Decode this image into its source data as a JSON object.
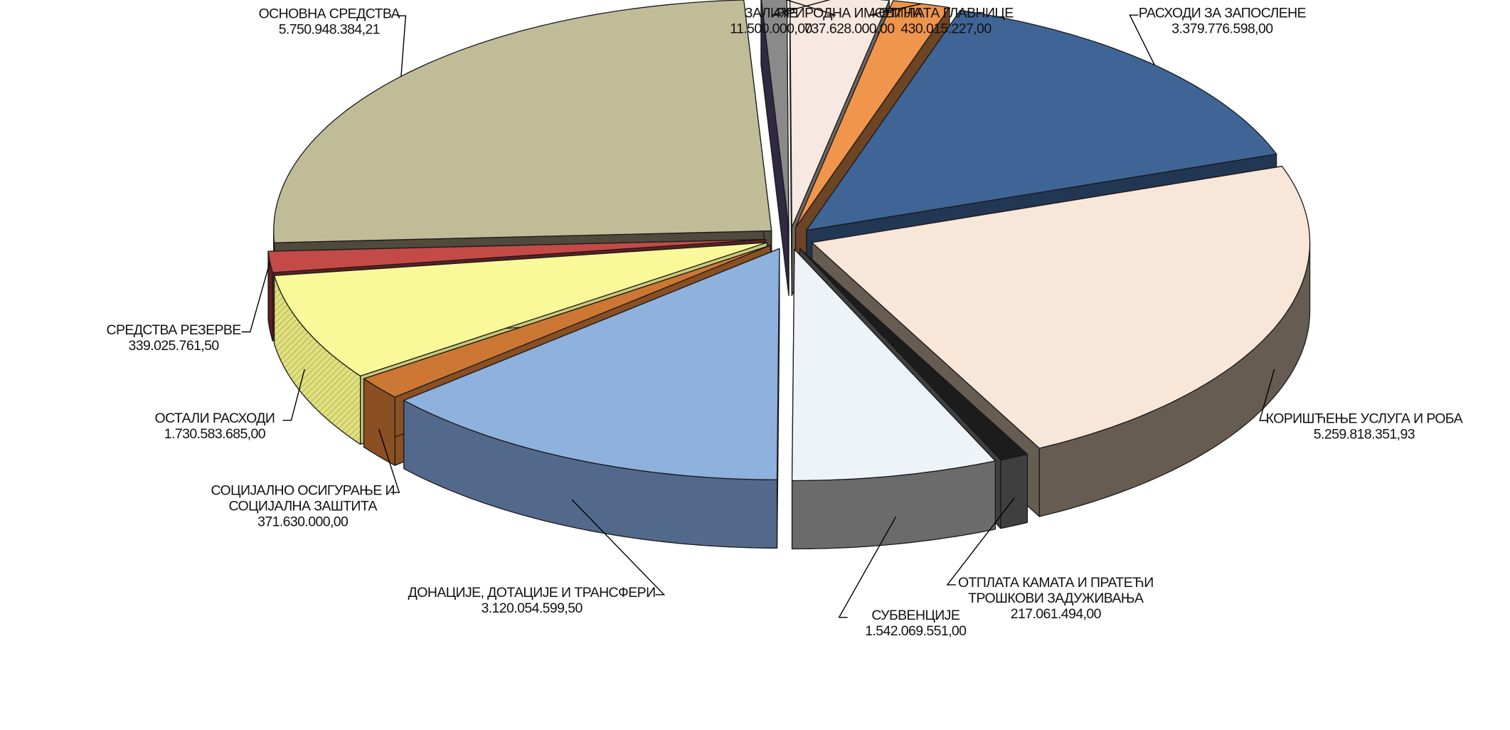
{
  "chart_data": {
    "type": "pie",
    "title": "",
    "style": "3d-exploded",
    "label_placement": "outside-with-leader-lines",
    "slices": [
      {
        "label": [
          "РАСХОДИ ЗА ЗАПОСЛЕНЕ"
        ],
        "value": 3379776598.0,
        "value_text": "3.379.776.598,00",
        "top_color": "#3f6597",
        "side_color": "#223754"
      },
      {
        "label": [
          "КОРИШЋЕЊЕ УСЛУГА И РОБА"
        ],
        "value": 5259818351.93,
        "value_text": "5.259.818.351,93",
        "top_color": "#f8e6d8",
        "side_color": "#675c52"
      },
      {
        "label": [
          "ОТПЛАТА КАМАТА И ПРАТЕЋИ",
          "ТРОШКОВИ ЗАДУЖИВАЊА"
        ],
        "value": 217061494.0,
        "value_text": "217.061.494,00",
        "top_color": "#1c1c1c",
        "side_color": "#3f3f3f"
      },
      {
        "label": [
          "СУБВЕНЦИЈЕ"
        ],
        "value": 1542069551.0,
        "value_text": "1.542.069.551,00",
        "top_color": "#eef3f8",
        "side_color": "#6b6b6b"
      },
      {
        "label": [
          "ДОНАЦИЈЕ, ДОТАЦИЈЕ И ТРАНСФЕРИ"
        ],
        "value": 3120054599.5,
        "value_text": "3.120.054.599,50",
        "top_color": "#8eb1dd",
        "side_color": "#52698c"
      },
      {
        "label": [
          "СОЦИЈАЛНО ОСИГУРАЊЕ И",
          "СОЦИЈАЛНА ЗАШТИТА"
        ],
        "value": 371630000.0,
        "value_text": "371.630.000,00",
        "top_color": "#cc7733",
        "side_color": "#8a4f23"
      },
      {
        "label": [
          "ОСТАЛИ РАСХОДИ"
        ],
        "value": 1730583685.0,
        "value_text": "1.730.583.685,00",
        "top_color": "#f9f99a",
        "side_color": "#c9c977"
      },
      {
        "label": [
          "СРЕДСТВА РЕЗЕРВЕ"
        ],
        "value": 339025761.5,
        "value_text": "339.025.761,50",
        "top_color": "#c44a47",
        "side_color": "#5e2020"
      },
      {
        "label": [
          "ОСНОВНА СРЕДСТВА"
        ],
        "value": 5750948384.21,
        "value_text": "5.750.948.384,21",
        "top_color": "#c1bc98",
        "side_color": "#4f4a3b"
      },
      {
        "label": [
          "ЗАЛИХЕ"
        ],
        "value": 11500000.0,
        "value_text": "11.500.000,00",
        "top_color": "#8a8a8a",
        "side_color": "#2f2942"
      },
      {
        "label": [
          "ПРИРОДНА ИМОВИНА"
        ],
        "value": 737628000.0,
        "value_text": "737.628.000,00",
        "top_color": "#f7e9e1",
        "side_color": "#6e6560"
      },
      {
        "label": [
          "ОТПЛАТА ГЛАВНИЦЕ"
        ],
        "value": 430015227.0,
        "value_text": "430.015.227,00",
        "top_color": "#f0954c",
        "side_color": "#6d4424"
      }
    ]
  }
}
